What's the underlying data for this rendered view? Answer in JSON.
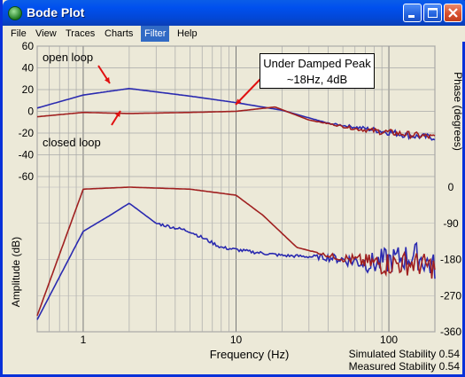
{
  "window": {
    "title": "Bode Plot",
    "accent": "#0050ee"
  },
  "menu": {
    "items": [
      {
        "label": "File"
      },
      {
        "label": "View"
      },
      {
        "label": "Traces"
      },
      {
        "label": "Charts"
      },
      {
        "label": "Filter",
        "active": true
      },
      {
        "label": "Help"
      }
    ]
  },
  "annotations": {
    "box_line1": "Under Damped Peak",
    "box_line2": "~18Hz, 4dB",
    "open_loop": "open loop",
    "closed_loop": "closed loop"
  },
  "stability": {
    "simulated": "Simulated Stability 0.54",
    "measured": "Measured Stability 0.54"
  },
  "chart_data": {
    "type": "line",
    "xlabel": "Frequency (Hz)",
    "xscale": "log",
    "xlim": [
      0.5,
      200
    ],
    "x_ticks": [
      "1",
      "10",
      "100"
    ],
    "amplitude_axis": {
      "label": "Amplitude (dB)",
      "ylim": [
        -70,
        60
      ],
      "ticks": [
        "60",
        "40",
        "20",
        "0",
        "-20",
        "-40",
        "-60"
      ]
    },
    "phase_axis": {
      "label": "Phase (degrees)",
      "ylim": [
        -360,
        0
      ],
      "ticks": [
        "0",
        "-90",
        "-180",
        "-270",
        "-360"
      ]
    },
    "grid": true,
    "colors": {
      "open_loop": "#2a2ab0",
      "closed_loop": "#a02020"
    },
    "series": [
      {
        "name": "open loop",
        "axis": "amplitude",
        "x": [
          0.5,
          1,
          2,
          5,
          10,
          20,
          40,
          80,
          150,
          200
        ],
        "y": [
          3,
          15,
          21,
          14,
          8,
          1,
          -11,
          -17,
          -23,
          -24
        ]
      },
      {
        "name": "closed loop",
        "axis": "amplitude",
        "x": [
          0.5,
          1,
          2,
          5,
          10,
          18,
          30,
          60,
          150,
          200
        ],
        "y": [
          -5,
          -1,
          -2,
          -1,
          0,
          4,
          -8,
          -16,
          -22,
          -24
        ]
      },
      {
        "axis": "phase",
        "x": [
          0.5,
          1,
          1.5,
          2,
          3,
          5,
          8,
          12,
          20,
          40,
          80,
          150,
          200
        ],
        "y": [
          -330,
          -110,
          -70,
          -40,
          -90,
          -110,
          -150,
          -160,
          -170,
          -175,
          -190,
          -170,
          -200
        ]
      },
      {
        "axis": "phase",
        "x": [
          0.5,
          1,
          2,
          5,
          10,
          15,
          25,
          40,
          80,
          150,
          200
        ],
        "y": [
          -320,
          -5,
          0,
          -5,
          -20,
          -70,
          -150,
          -170,
          -190,
          -190,
          -200
        ]
      }
    ]
  }
}
